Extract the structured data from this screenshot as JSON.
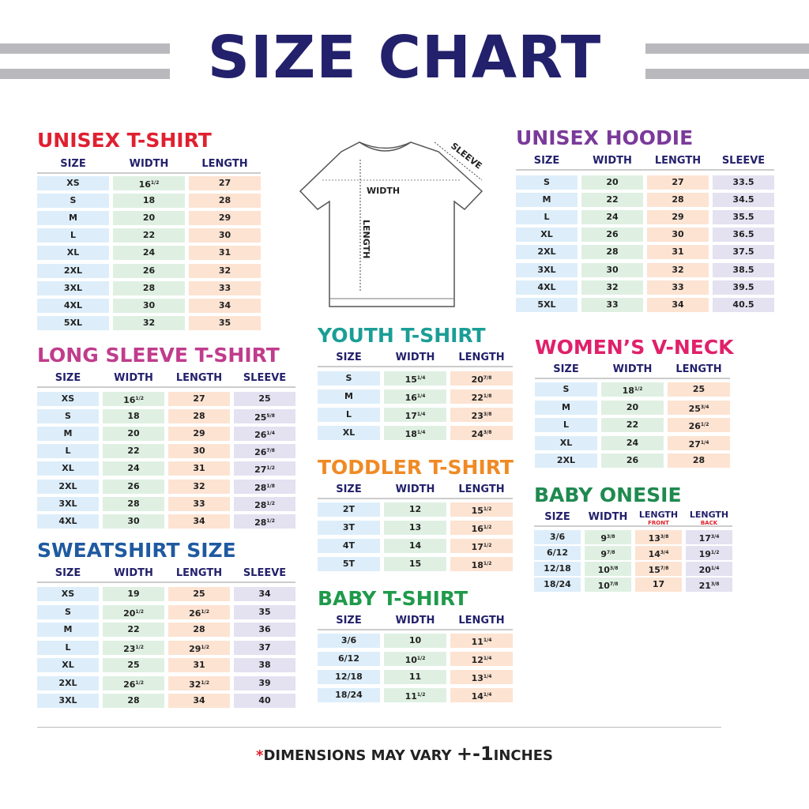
{
  "header": {
    "title": "SIZE CHART"
  },
  "diagram": {
    "width": "WIDTH",
    "length": "LENGTH",
    "sleeve": "SLEEVE"
  },
  "tables": {
    "unisex_tshirt": {
      "title": "UNISEX T-SHIRT",
      "headers": [
        "SIZE",
        "WIDTH",
        "LENGTH"
      ],
      "rows": [
        [
          "XS",
          [
            "16",
            "1/2"
          ],
          "27"
        ],
        [
          "S",
          "18",
          "28"
        ],
        [
          "M",
          "20",
          "29"
        ],
        [
          "L",
          "22",
          "30"
        ],
        [
          "XL",
          "24",
          "31"
        ],
        [
          "2XL",
          "26",
          "32"
        ],
        [
          "3XL",
          "28",
          "33"
        ],
        [
          "4XL",
          "30",
          "34"
        ],
        [
          "5XL",
          "32",
          "35"
        ]
      ]
    },
    "long_sleeve": {
      "title": "LONG SLEEVE T-SHIRT",
      "headers": [
        "SIZE",
        "WIDTH",
        "LENGTH",
        "SLEEVE"
      ],
      "rows": [
        [
          "XS",
          [
            "16",
            "1/2"
          ],
          "27",
          "25"
        ],
        [
          "S",
          "18",
          "28",
          [
            "25",
            "5/8"
          ]
        ],
        [
          "M",
          "20",
          "29",
          [
            "26",
            "1/4"
          ]
        ],
        [
          "L",
          "22",
          "30",
          [
            "26",
            "7/8"
          ]
        ],
        [
          "XL",
          "24",
          "31",
          [
            "27",
            "1/2"
          ]
        ],
        [
          "2XL",
          "26",
          "32",
          [
            "28",
            "1/8"
          ]
        ],
        [
          "3XL",
          "28",
          "33",
          [
            "28",
            "1/2"
          ]
        ],
        [
          "4XL",
          "30",
          "34",
          [
            "28",
            "1/2"
          ]
        ]
      ]
    },
    "sweatshirt": {
      "title": "SWEATSHIRT SIZE",
      "headers": [
        "SIZE",
        "WIDTH",
        "LENGTH",
        "SLEEVE"
      ],
      "rows": [
        [
          "XS",
          "19",
          "25",
          "34"
        ],
        [
          "S",
          [
            "20",
            "1/2"
          ],
          [
            "26",
            "1/2"
          ],
          "35"
        ],
        [
          "M",
          "22",
          "28",
          "36"
        ],
        [
          "L",
          [
            "23",
            "1/2"
          ],
          [
            "29",
            "1/2"
          ],
          "37"
        ],
        [
          "XL",
          "25",
          "31",
          "38"
        ],
        [
          "2XL",
          [
            "26",
            "1/2"
          ],
          [
            "32",
            "1/2"
          ],
          "39"
        ],
        [
          "3XL",
          "28",
          "34",
          "40"
        ]
      ]
    },
    "youth_tshirt": {
      "title": "YOUTH T-SHIRT",
      "headers": [
        "SIZE",
        "WIDTH",
        "LENGTH"
      ],
      "rows": [
        [
          "S",
          [
            "15",
            "1/4"
          ],
          [
            "20",
            "7/8"
          ]
        ],
        [
          "M",
          [
            "16",
            "1/4"
          ],
          [
            "22",
            "1/8"
          ]
        ],
        [
          "L",
          [
            "17",
            "1/4"
          ],
          [
            "23",
            "3/8"
          ]
        ],
        [
          "XL",
          [
            "18",
            "1/4"
          ],
          [
            "24",
            "3/8"
          ]
        ]
      ]
    },
    "toddler_tshirt": {
      "title": "TODDLER T-SHIRT",
      "headers": [
        "SIZE",
        "WIDTH",
        "LENGTH"
      ],
      "rows": [
        [
          "2T",
          "12",
          [
            "15",
            "1/2"
          ]
        ],
        [
          "3T",
          "13",
          [
            "16",
            "1/2"
          ]
        ],
        [
          "4T",
          "14",
          [
            "17",
            "1/2"
          ]
        ],
        [
          "5T",
          "15",
          [
            "18",
            "1/2"
          ]
        ]
      ]
    },
    "baby_tshirt": {
      "title": "BABY T-SHIRT",
      "headers": [
        "SIZE",
        "WIDTH",
        "LENGTH"
      ],
      "rows": [
        [
          "3/6",
          "10",
          [
            "11",
            "1/4"
          ]
        ],
        [
          "6/12",
          [
            "10",
            "1/2"
          ],
          [
            "12",
            "1/4"
          ]
        ],
        [
          "12/18",
          "11",
          [
            "13",
            "1/4"
          ]
        ],
        [
          "18/24",
          [
            "11",
            "1/2"
          ],
          [
            "14",
            "1/4"
          ]
        ]
      ]
    },
    "unisex_hoodie": {
      "title": "UNISEX HOODIE",
      "headers": [
        "SIZE",
        "WIDTH",
        "LENGTH",
        "SLEEVE"
      ],
      "rows": [
        [
          "S",
          "20",
          "27",
          "33.5"
        ],
        [
          "M",
          "22",
          "28",
          "34.5"
        ],
        [
          "L",
          "24",
          "29",
          "35.5"
        ],
        [
          "XL",
          "26",
          "30",
          "36.5"
        ],
        [
          "2XL",
          "28",
          "31",
          "37.5"
        ],
        [
          "3XL",
          "30",
          "32",
          "38.5"
        ],
        [
          "4XL",
          "32",
          "33",
          "39.5"
        ],
        [
          "5XL",
          "33",
          "34",
          "40.5"
        ]
      ]
    },
    "womens_vneck": {
      "title": "WOMEN’S V-NECK",
      "headers": [
        "SIZE",
        "WIDTH",
        "LENGTH"
      ],
      "rows": [
        [
          "S",
          [
            "18",
            "1/2"
          ],
          "25"
        ],
        [
          "M",
          "20",
          [
            "25",
            "3/4"
          ]
        ],
        [
          "L",
          "22",
          [
            "26",
            "1/2"
          ]
        ],
        [
          "XL",
          "24",
          [
            "27",
            "1/4"
          ]
        ],
        [
          "2XL",
          "26",
          "28"
        ]
      ]
    },
    "baby_onesie": {
      "title": "BABY ONESIE",
      "headers": [
        "SIZE",
        "WIDTH",
        [
          "LENGTH",
          "FRONT"
        ],
        [
          "LENGTH",
          "BACK"
        ]
      ],
      "rows": [
        [
          "3/6",
          [
            "9",
            "3/8"
          ],
          [
            "13",
            "3/8"
          ],
          [
            "17",
            "3/4"
          ]
        ],
        [
          "6/12",
          [
            "9",
            "7/8"
          ],
          [
            "14",
            "3/4"
          ],
          [
            "19",
            "1/2"
          ]
        ],
        [
          "12/18",
          [
            "10",
            "3/8"
          ],
          [
            "15",
            "7/8"
          ],
          [
            "20",
            "1/4"
          ]
        ],
        [
          "18/24",
          [
            "10",
            "7/8"
          ],
          "17",
          [
            "21",
            "3/8"
          ]
        ]
      ]
    }
  },
  "footer": {
    "asterisk": "*",
    "text": "DIMENSIONS MAY VARY",
    "tolerance": "+-1",
    "unit": "INCHES"
  }
}
